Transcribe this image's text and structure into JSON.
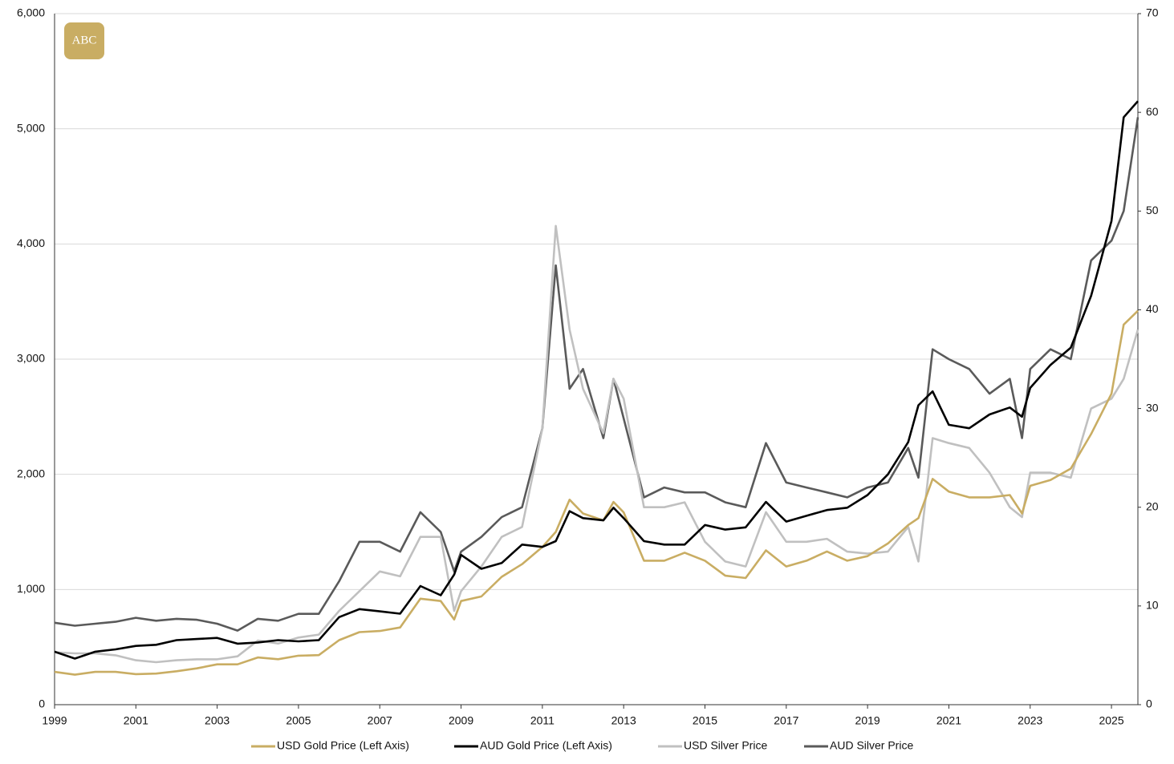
{
  "chart_data": {
    "type": "line",
    "logo_text": "ABC",
    "x": [
      1999,
      1999.5,
      2000,
      2000.5,
      2001,
      2001.5,
      2002,
      2002.5,
      2003,
      2003.5,
      2004,
      2004.5,
      2005,
      2005.5,
      2006,
      2006.5,
      2007,
      2007.5,
      2008,
      2008.5,
      2008.83,
      2009,
      2009.5,
      2010,
      2010.5,
      2011,
      2011.33,
      2011.67,
      2012,
      2012.5,
      2012.75,
      2013,
      2013.5,
      2014,
      2014.5,
      2015,
      2015.5,
      2016,
      2016.5,
      2017,
      2017.5,
      2018,
      2018.5,
      2019,
      2019.5,
      2020,
      2020.25,
      2020.6,
      2021,
      2021.5,
      2022,
      2022.5,
      2022.8,
      2023,
      2023.5,
      2024,
      2024.5,
      2025,
      2025.3,
      2025.65
    ],
    "xlim": [
      1999,
      2025.65
    ],
    "xticks": [
      1999,
      2001,
      2003,
      2005,
      2007,
      2009,
      2011,
      2013,
      2015,
      2017,
      2019,
      2021,
      2023,
      2025
    ],
    "ylim": [
      0,
      6000
    ],
    "yticks": [
      0,
      {
        "value": 1000,
        "label": "1,000"
      },
      {
        "value": 2000,
        "label": "2,000"
      },
      {
        "value": 3000,
        "label": "3,000"
      },
      {
        "value": 4000,
        "label": "4,000"
      },
      {
        "value": 5000,
        "label": "5,000"
      },
      {
        "value": 6000,
        "label": "6,000"
      }
    ],
    "y2lim": [
      0,
      70
    ],
    "y2ticks": [
      0,
      10,
      20,
      30,
      40,
      50,
      60,
      70
    ],
    "grid": true,
    "legend": "bottom",
    "series": [
      {
        "name": "USD Gold Price (Left Axis)",
        "color": "#c9ad63",
        "axis": "y",
        "values": [
          285,
          260,
          285,
          285,
          265,
          270,
          290,
          315,
          350,
          350,
          410,
          395,
          425,
          430,
          560,
          630,
          640,
          670,
          920,
          900,
          740,
          900,
          940,
          1110,
          1220,
          1370,
          1500,
          1780,
          1660,
          1600,
          1760,
          1670,
          1250,
          1250,
          1320,
          1250,
          1120,
          1100,
          1340,
          1200,
          1250,
          1330,
          1250,
          1290,
          1400,
          1560,
          1620,
          1960,
          1850,
          1800,
          1800,
          1820,
          1660,
          1900,
          1950,
          2050,
          2350,
          2700,
          3300,
          3420
        ]
      },
      {
        "name": "AUD Gold Price (Left Axis)",
        "color": "#000000",
        "axis": "y",
        "values": [
          460,
          400,
          460,
          480,
          510,
          520,
          560,
          570,
          580,
          530,
          540,
          560,
          550,
          560,
          760,
          830,
          810,
          790,
          1030,
          950,
          1130,
          1300,
          1180,
          1230,
          1390,
          1370,
          1420,
          1680,
          1620,
          1600,
          1710,
          1620,
          1420,
          1390,
          1390,
          1560,
          1520,
          1540,
          1760,
          1590,
          1640,
          1690,
          1710,
          1820,
          2000,
          2280,
          2600,
          2720,
          2430,
          2400,
          2520,
          2580,
          2500,
          2750,
          2950,
          3100,
          3550,
          4200,
          5100,
          5240
        ]
      },
      {
        "name": "USD Silver Price",
        "color": "#c0c0c0",
        "axis": "y2",
        "values": [
          5.3,
          5.2,
          5.2,
          5.0,
          4.5,
          4.3,
          4.5,
          4.6,
          4.6,
          4.9,
          6.5,
          6.2,
          6.8,
          7.1,
          9.5,
          11.5,
          13.5,
          13,
          17,
          17,
          9.5,
          11.5,
          14,
          17,
          18,
          28,
          48.5,
          38,
          32,
          27.5,
          33,
          31,
          20,
          20,
          20.5,
          16.5,
          14.5,
          14,
          19.5,
          16.5,
          16.5,
          16.8,
          15.5,
          15.3,
          15.5,
          18,
          14.5,
          27,
          26.5,
          26,
          23.5,
          20,
          19,
          23.5,
          23.5,
          23,
          30,
          31,
          33,
          38
        ]
      },
      {
        "name": "AUD Silver Price",
        "color": "#5a5a5a",
        "axis": "y2",
        "values": [
          8.3,
          8,
          8.2,
          8.4,
          8.8,
          8.5,
          8.7,
          8.6,
          8.2,
          7.5,
          8.7,
          8.5,
          9.2,
          9.2,
          12.5,
          16.5,
          16.5,
          15.5,
          19.5,
          17.5,
          13.5,
          15.5,
          17,
          19,
          20,
          28,
          44.5,
          32,
          34,
          27,
          33,
          29,
          21,
          22,
          21.5,
          21.5,
          20.5,
          20,
          26.5,
          22.5,
          22,
          21.5,
          21,
          22,
          22.5,
          26,
          23,
          36,
          35,
          34,
          31.5,
          33,
          27,
          34,
          36,
          35,
          45,
          47,
          50,
          59.5
        ]
      }
    ]
  }
}
